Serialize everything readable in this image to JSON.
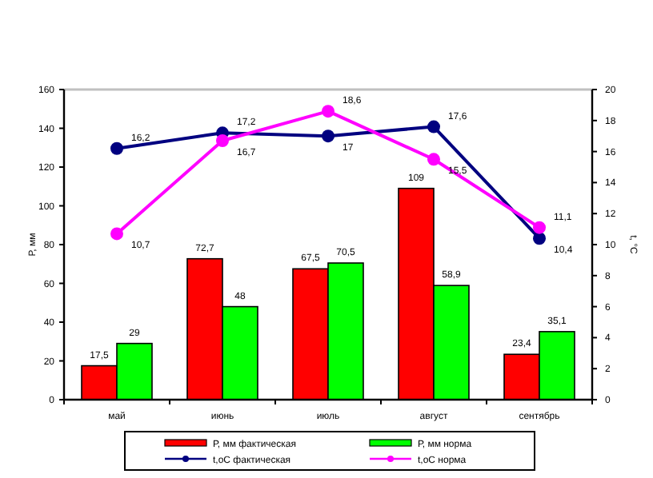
{
  "chart_data": {
    "type": "bar",
    "categories": [
      "май",
      "июнь",
      "июль",
      "август",
      "сентябрь"
    ],
    "ylabel": "Р, мм",
    "y2label": "t, °С",
    "ylim": [
      0,
      160
    ],
    "yticks": [
      0,
      20,
      40,
      60,
      80,
      100,
      120,
      140,
      160
    ],
    "y2lim": [
      0,
      20
    ],
    "y2ticks": [
      0,
      2,
      4,
      6,
      8,
      10,
      12,
      14,
      16,
      18,
      20
    ],
    "legend": "bottom",
    "marker": "circle",
    "series": [
      {
        "name": "Р, мм фактическая",
        "color": "#ff0000",
        "values": [
          17.5,
          72.7,
          67.5,
          109,
          23.4
        ],
        "value_labels": [
          "17,5",
          "72,7",
          "67,5",
          "109",
          "23,4"
        ]
      },
      {
        "name": "Р, мм норма",
        "color": "#00ff00",
        "values": [
          29,
          48,
          70.5,
          58.9,
          35.1
        ],
        "value_labels": [
          "29",
          "48",
          "70,5",
          "58,9",
          "35,1"
        ]
      },
      {
        "name": "t,оС фактическая",
        "type": "line",
        "axis": "y2",
        "color": "#000080",
        "values": [
          16.2,
          17.2,
          17,
          17.6,
          10.4
        ],
        "value_labels": [
          "16,2",
          "17,2",
          "17",
          "17,6",
          "10,4"
        ]
      },
      {
        "name": "t,оС норма",
        "type": "line",
        "axis": "y2",
        "color": "#ff00ff",
        "values": [
          10.7,
          16.7,
          18.6,
          15.5,
          11.1
        ],
        "value_labels": [
          "10,7",
          "16,7",
          "18,6",
          "15,5",
          "11,1"
        ]
      }
    ]
  }
}
